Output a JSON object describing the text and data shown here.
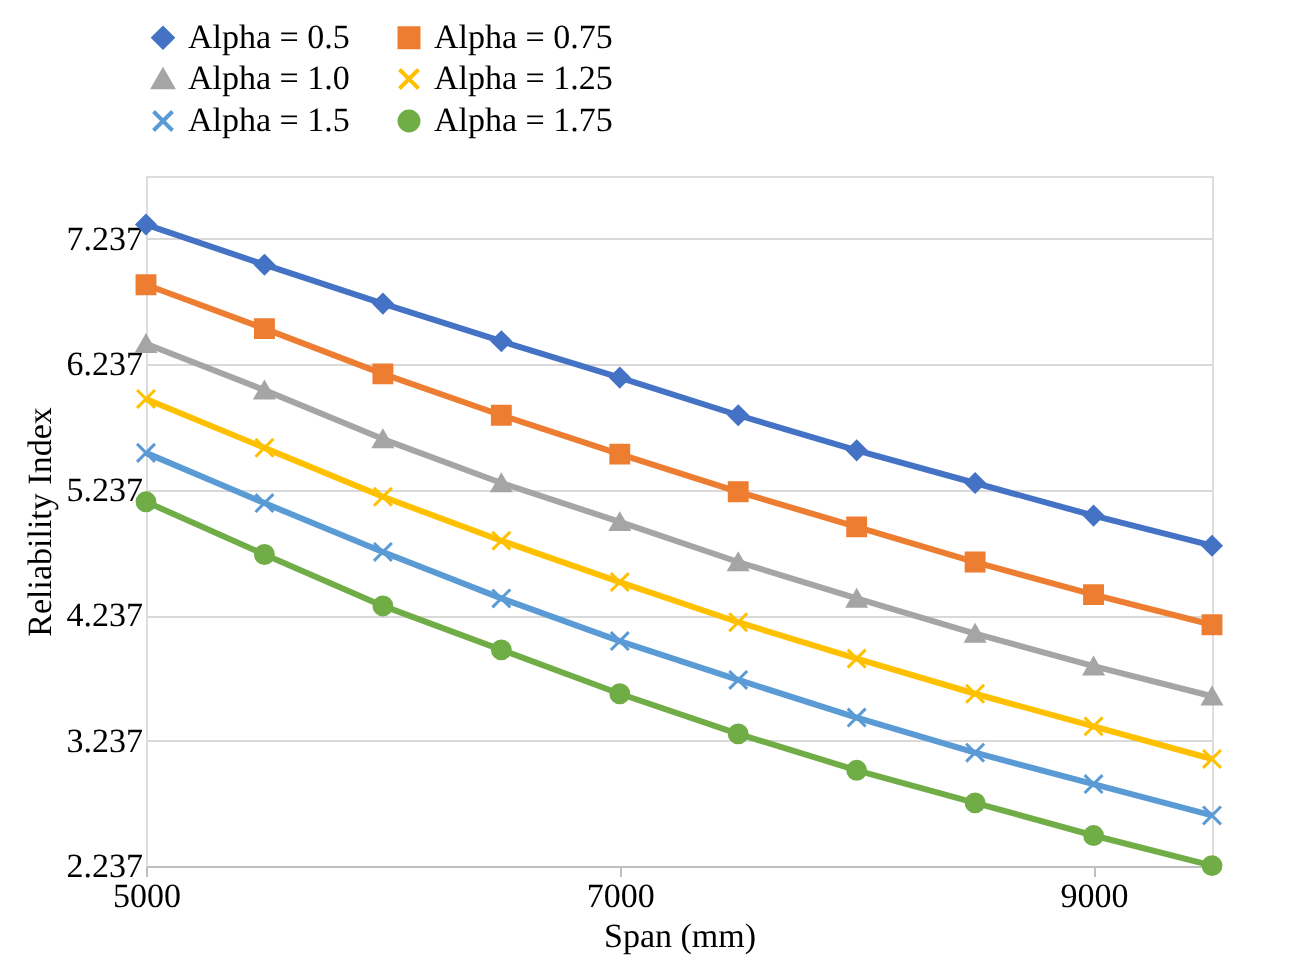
{
  "chart_data": {
    "type": "line",
    "xlabel": "Span (mm)",
    "ylabel": "Reliability Index",
    "x": [
      5000,
      5500,
      6000,
      6500,
      7000,
      7500,
      8000,
      8500,
      9000,
      9500
    ],
    "xlim": [
      5000,
      9500
    ],
    "xticks": [
      5000,
      7000,
      9000
    ],
    "ylim": [
      2.237,
      7.737
    ],
    "yticks": [
      2.237,
      3.237,
      4.237,
      5.237,
      6.237,
      7.237
    ],
    "grid": "y",
    "legend": "top",
    "series": [
      {
        "name": "Alpha = 0.5",
        "color": "#4472c4",
        "marker": "diamond",
        "values": [
          7.35,
          7.03,
          6.72,
          6.42,
          6.13,
          5.83,
          5.55,
          5.29,
          5.03,
          4.79
        ]
      },
      {
        "name": "Alpha = 0.75",
        "color": "#ed7d31",
        "marker": "square",
        "values": [
          6.87,
          6.52,
          6.16,
          5.83,
          5.52,
          5.22,
          4.94,
          4.66,
          4.4,
          4.16
        ]
      },
      {
        "name": "Alpha = 1.0",
        "color": "#a5a5a5",
        "marker": "triangle",
        "values": [
          6.4,
          6.03,
          5.64,
          5.29,
          4.98,
          4.66,
          4.37,
          4.09,
          3.83,
          3.59
        ]
      },
      {
        "name": "Alpha = 1.25",
        "color": "#ffc000",
        "marker": "cross",
        "values": [
          5.96,
          5.57,
          5.18,
          4.83,
          4.5,
          4.18,
          3.89,
          3.61,
          3.35,
          3.09
        ]
      },
      {
        "name": "Alpha = 1.5",
        "color": "#5b9bd5",
        "marker": "cross",
        "values": [
          5.53,
          5.13,
          4.74,
          4.37,
          4.03,
          3.72,
          3.42,
          3.14,
          2.89,
          2.64
        ]
      },
      {
        "name": "Alpha = 1.75",
        "color": "#70ad47",
        "marker": "circle",
        "values": [
          5.14,
          4.72,
          4.31,
          3.96,
          3.61,
          3.29,
          3.0,
          2.74,
          2.48,
          2.24
        ]
      }
    ]
  }
}
